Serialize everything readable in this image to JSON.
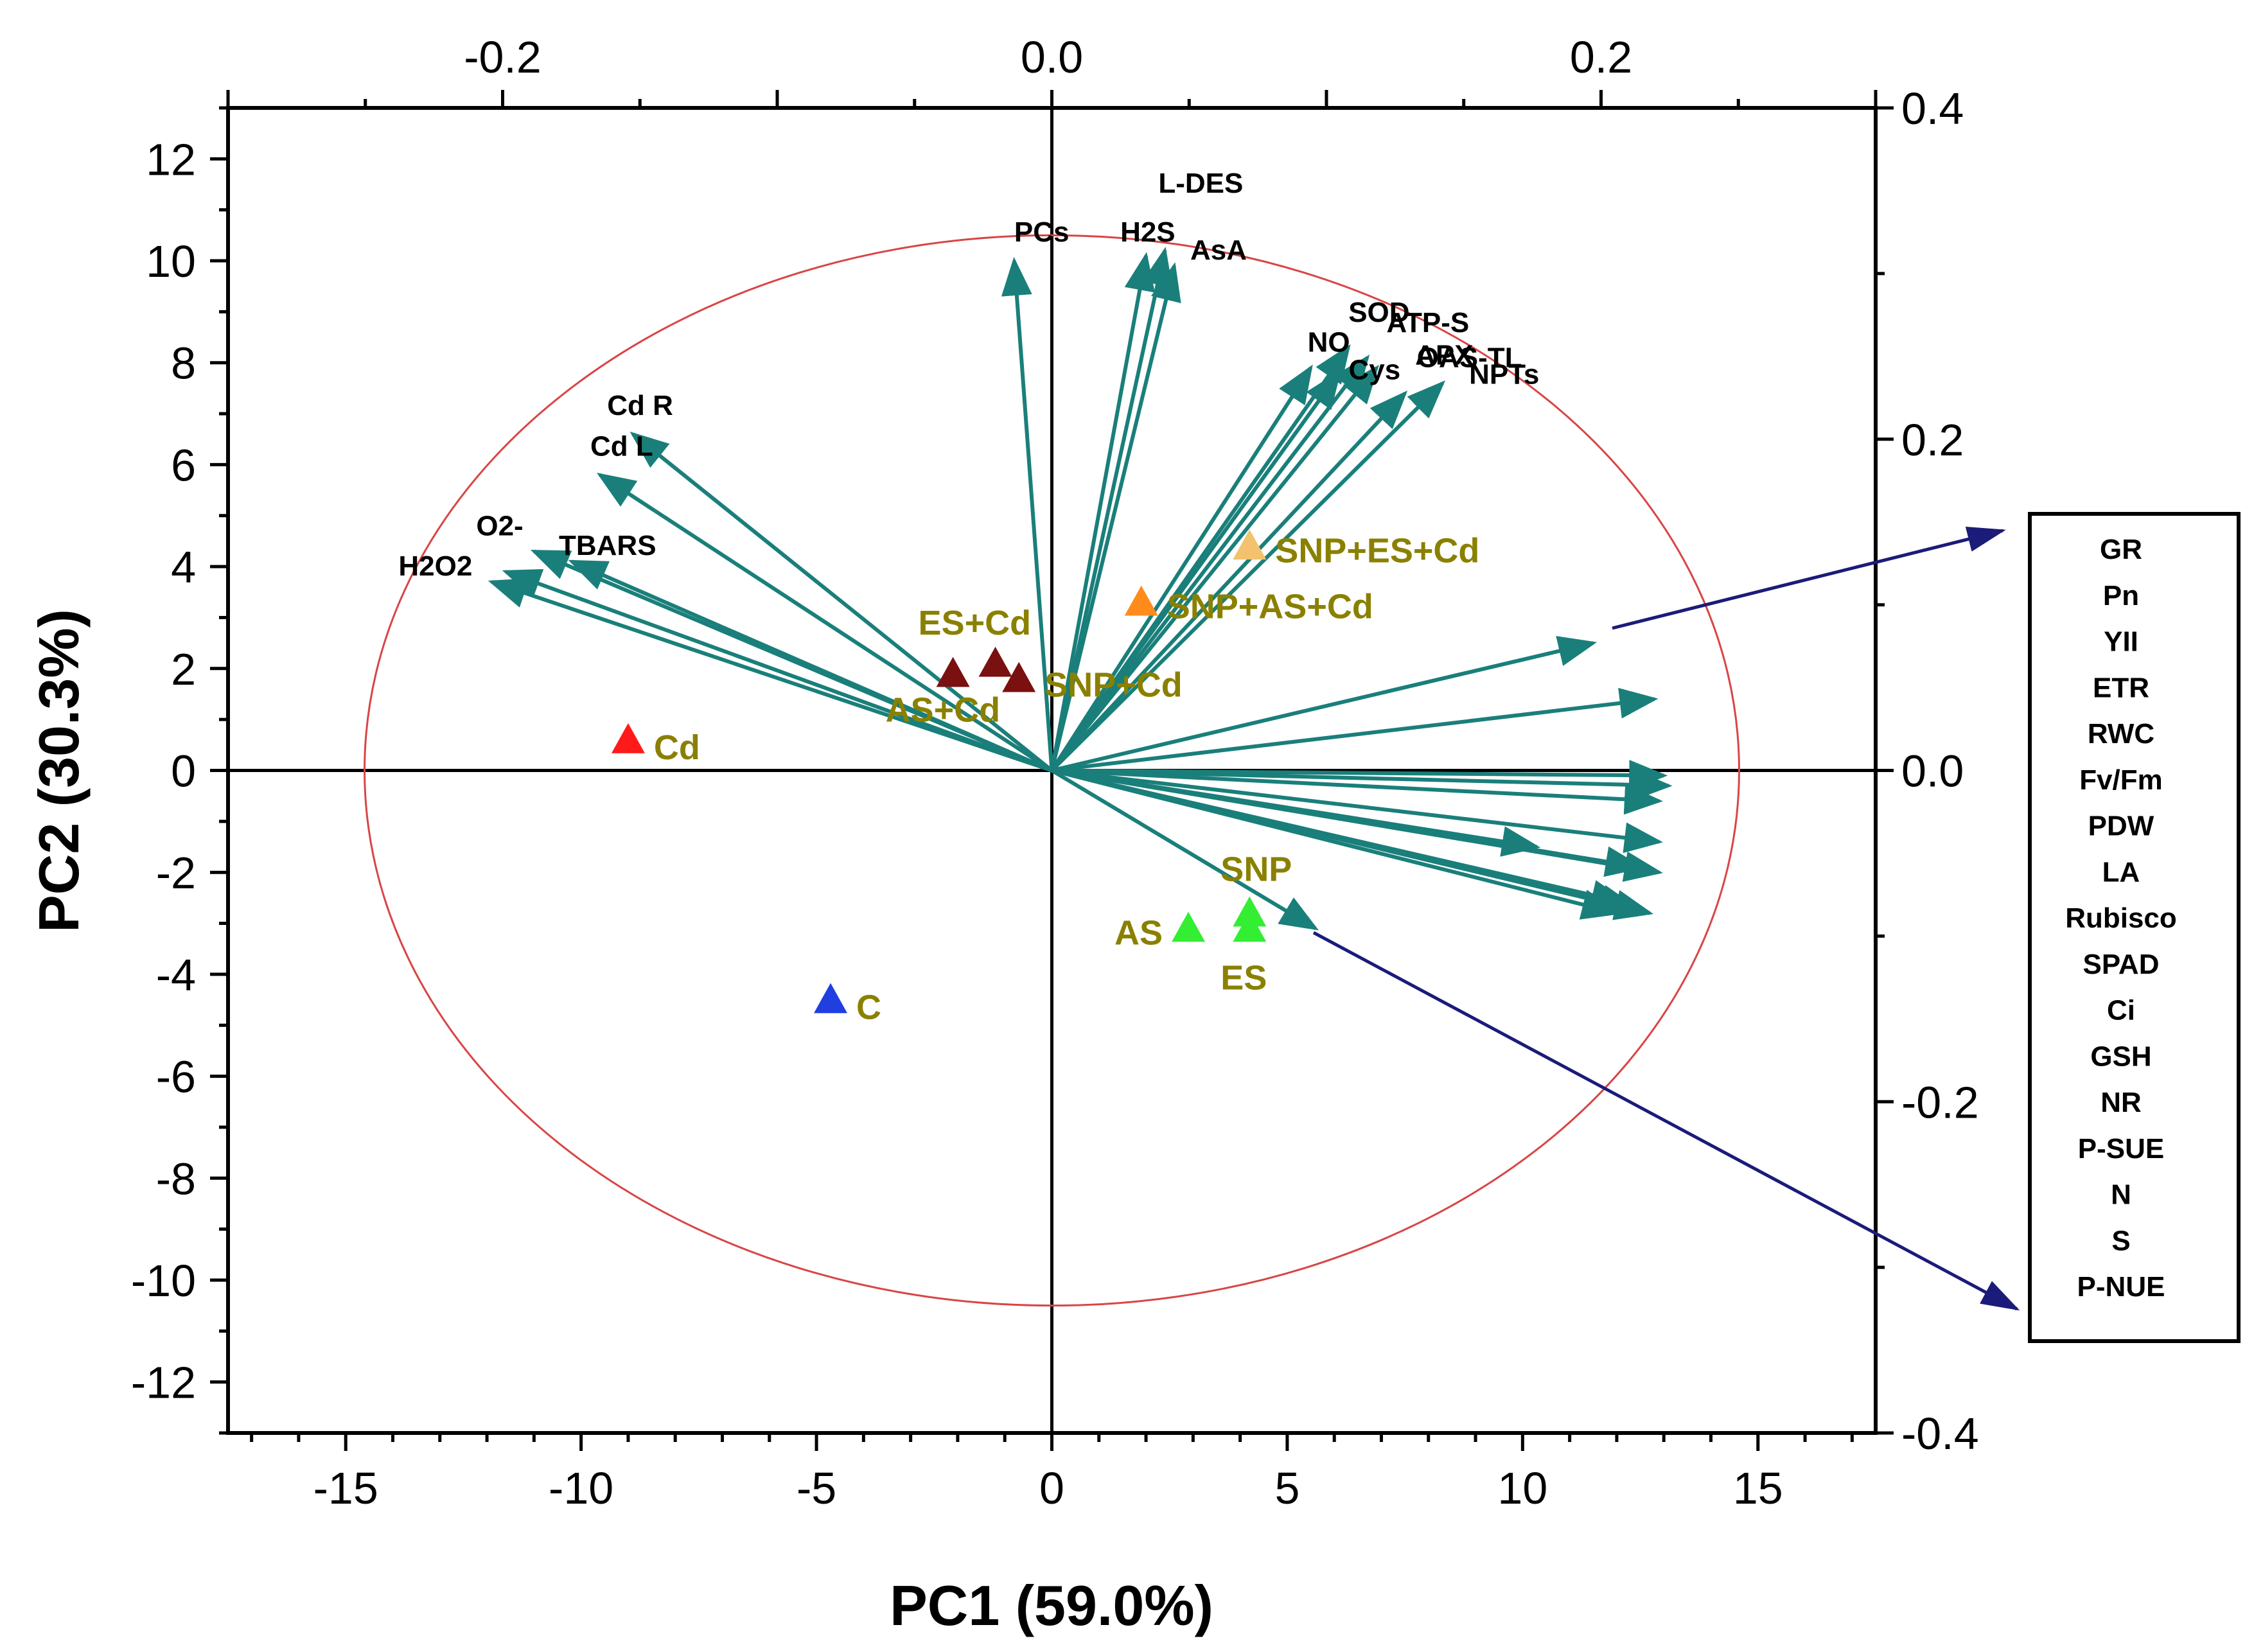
{
  "chart_data": {
    "type": "scatter",
    "subtype": "pca-biplot",
    "xlabel": "PC1 (59.0%)",
    "ylabel": "PC2 (30.3%)",
    "xlim": [
      -17.5,
      17.5
    ],
    "ylim": [
      -13,
      13
    ],
    "x_ticks": [
      "-15",
      "-10",
      "-5",
      "0",
      "5",
      "10",
      "15"
    ],
    "y_ticks": [
      "-12",
      "-10",
      "-8",
      "-6",
      "-4",
      "-2",
      "0",
      "2",
      "4",
      "6",
      "8",
      "10",
      "12"
    ],
    "top_axis": {
      "lim": [
        -0.3,
        0.3
      ],
      "ticks": [
        "-0.2",
        "0.0",
        "0.2"
      ]
    },
    "right_axis": {
      "lim": [
        -0.4,
        0.4
      ],
      "ticks": [
        "-0.4",
        "-0.2",
        "0.0",
        "0.2",
        "0.4"
      ]
    },
    "ellipse": {
      "center": [
        0,
        0
      ],
      "rx": 14.6,
      "ry": 10.5,
      "color": "#d94545"
    },
    "colors": {
      "loading_arrow": "#1a7f7a",
      "legend_arrow": "#1b1b7a",
      "group_label": "#8a8000"
    },
    "groups": [
      {
        "name": "C",
        "x": -4.7,
        "y": -4.5,
        "color": "#1f3fe0"
      },
      {
        "name": "Cd",
        "x": -9.0,
        "y": 0.6,
        "color": "#ff1a1a"
      },
      {
        "name": "AS+Cd",
        "x": -2.1,
        "y": 1.9,
        "color": "#7a1010"
      },
      {
        "name": "ES+Cd",
        "x": -1.2,
        "y": 2.1,
        "color": "#7a1010"
      },
      {
        "name": "SNP+Cd",
        "x": -0.7,
        "y": 1.8,
        "color": "#7a1010"
      },
      {
        "name": "SNP+AS+Cd",
        "x": 1.9,
        "y": 3.3,
        "color": "#ff8c1a"
      },
      {
        "name": "SNP+ES+Cd",
        "x": 4.2,
        "y": 4.4,
        "color": "#f2c26e"
      },
      {
        "name": "AS",
        "x": 2.9,
        "y": -3.1,
        "color": "#33ee33"
      },
      {
        "name": "SNP",
        "x": 4.2,
        "y": -2.8,
        "color": "#33ee33"
      },
      {
        "name": "ES",
        "x": 4.2,
        "y": -3.1,
        "color": "#33ee33"
      }
    ],
    "loadings": [
      {
        "name": "PCs",
        "x": -0.8,
        "y": 10.0
      },
      {
        "name": "L-DES",
        "x": 2.4,
        "y": 10.2
      },
      {
        "name": "H2S",
        "x": 2.0,
        "y": 10.1
      },
      {
        "name": "AsA",
        "x": 2.6,
        "y": 9.9
      },
      {
        "name": "NO",
        "x": 5.5,
        "y": 7.9
      },
      {
        "name": "SOD",
        "x": 6.3,
        "y": 8.3
      },
      {
        "name": "Cys",
        "x": 6.1,
        "y": 7.8
      },
      {
        "name": "ATP-S",
        "x": 6.7,
        "y": 8.1
      },
      {
        "name": "APX",
        "x": 6.9,
        "y": 7.9
      },
      {
        "name": "NPTs",
        "x": 7.5,
        "y": 7.4
      },
      {
        "name": "OAS-TL",
        "x": 8.3,
        "y": 7.6
      },
      {
        "name": "Cd R",
        "x": -8.9,
        "y": 6.6
      },
      {
        "name": "Cd L",
        "x": -9.6,
        "y": 5.8
      },
      {
        "name": "O2-",
        "x": -11.0,
        "y": 4.3
      },
      {
        "name": "TBARS",
        "x": -10.2,
        "y": 4.1
      },
      {
        "name": "H2O2",
        "x": -11.9,
        "y": 3.7
      },
      {
        "name": "",
        "x": -11.6,
        "y": 3.9
      },
      {
        "name": "",
        "x": 11.5,
        "y": 2.5
      },
      {
        "name": "",
        "x": 12.8,
        "y": 1.4
      },
      {
        "name": "",
        "x": 13.0,
        "y": -0.1
      },
      {
        "name": "",
        "x": 13.1,
        "y": -0.3
      },
      {
        "name": "",
        "x": 12.9,
        "y": -0.6
      },
      {
        "name": "",
        "x": 10.3,
        "y": -1.5
      },
      {
        "name": "",
        "x": 12.9,
        "y": -1.4
      },
      {
        "name": "",
        "x": 12.5,
        "y": -1.9
      },
      {
        "name": "",
        "x": 12.9,
        "y": -2.0
      },
      {
        "name": "",
        "x": 12.2,
        "y": -2.6
      },
      {
        "name": "",
        "x": 12.4,
        "y": -2.7
      },
      {
        "name": "",
        "x": 12.0,
        "y": -2.8
      },
      {
        "name": "",
        "x": 12.7,
        "y": -2.8
      },
      {
        "name": "",
        "x": 5.6,
        "y": -3.1
      }
    ],
    "legend": {
      "title": "",
      "items": [
        "GR",
        "Pn",
        "YII",
        "ETR",
        "RWC",
        "Fv/Fm",
        "PDW",
        "LA",
        "Rubisco",
        "SPAD",
        "Ci",
        "GSH",
        "NR",
        "P-SUE",
        "N",
        "S",
        "P-NUE"
      ]
    }
  }
}
